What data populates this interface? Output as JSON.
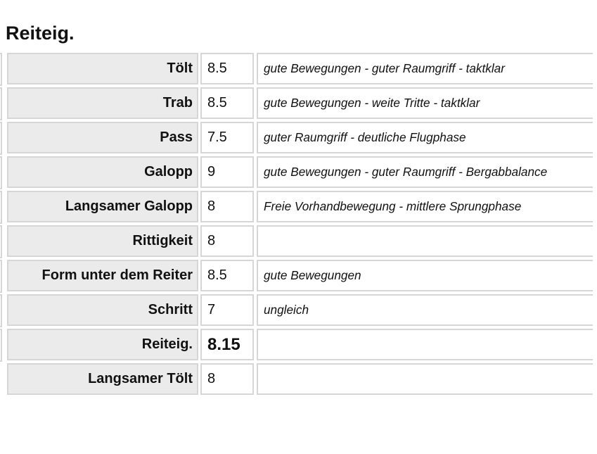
{
  "title": "Reiteig.",
  "rows": [
    {
      "label": "Tölt",
      "value": "8.5",
      "comment": "gute Bewegungen - guter Raumgriff - taktklar",
      "edge": true
    },
    {
      "label": "Trab",
      "value": "8.5",
      "comment": "gute Bewegungen - weite Tritte - taktklar",
      "edge": true
    },
    {
      "label": "Pass",
      "value": "7.5",
      "comment": "guter Raumgriff - deutliche Flugphase",
      "edge": true
    },
    {
      "label": "Galopp",
      "value": "9",
      "comment": "gute Bewegungen - guter Raumgriff - Bergabbalance",
      "edge": true
    },
    {
      "label": "Langsamer Galopp",
      "value": "8",
      "comment": "Freie Vorhandbewegung - mittlere Sprungphase",
      "edge": true
    },
    {
      "label": "Rittigkeit",
      "value": "8",
      "comment": "",
      "edge": true
    },
    {
      "label": "Form unter dem Reiter",
      "value": "8.5",
      "comment": "gute Bewegungen",
      "edge": true
    },
    {
      "label": "Schritt",
      "value": "7",
      "comment": "ungleich",
      "edge": true
    },
    {
      "label": "Reiteig.",
      "value": "8.15",
      "comment": "",
      "edge": true,
      "total": true
    },
    {
      "label": "Langsamer Tölt",
      "value": "8",
      "comment": "",
      "edge": false
    }
  ]
}
